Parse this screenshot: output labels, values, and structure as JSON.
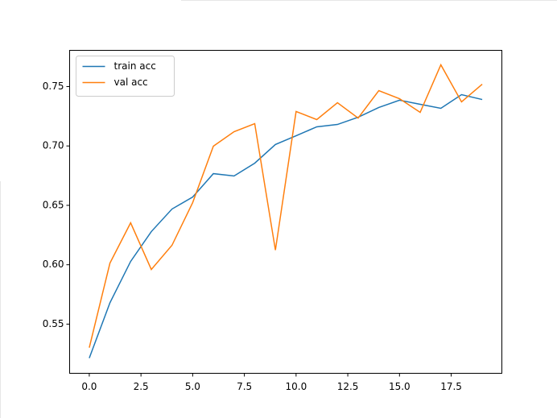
{
  "chart_data": {
    "type": "line",
    "x": [
      0,
      1,
      2,
      3,
      4,
      5,
      6,
      7,
      8,
      9,
      10,
      11,
      12,
      13,
      14,
      15,
      16,
      17,
      18,
      19
    ],
    "series": [
      {
        "name": "train acc",
        "color": "#1f77b4",
        "values": [
          0.5214,
          0.568,
          0.6028,
          0.6279,
          0.6469,
          0.657,
          0.6767,
          0.6747,
          0.6855,
          0.7012,
          0.7086,
          0.7161,
          0.7181,
          0.7242,
          0.7324,
          0.7385,
          0.7351,
          0.7317,
          0.7432,
          0.7391
        ]
      },
      {
        "name": "val acc",
        "color": "#ff7f0e",
        "values": [
          0.5302,
          0.6014,
          0.6353,
          0.596,
          0.6164,
          0.6523,
          0.6998,
          0.712,
          0.7188,
          0.6123,
          0.729,
          0.7222,
          0.7364,
          0.7235,
          0.7466,
          0.7398,
          0.7283,
          0.7683,
          0.7371,
          0.752
        ]
      }
    ],
    "xlim": [
      -0.95,
      19.95
    ],
    "xticks": [
      {
        "value": 0,
        "label": "0.0"
      },
      2.5,
      {
        "value": 5,
        "label": "5.0"
      },
      7.5,
      {
        "value": 10,
        "label": "10.0"
      },
      12.5,
      {
        "value": 15,
        "label": "15.0"
      },
      17.5
    ],
    "ylim": [
      0.5086,
      0.7805
    ],
    "yticks": [
      0.55,
      {
        "value": 0.6,
        "label": "0.60"
      },
      0.65,
      {
        "value": 0.7,
        "label": "0.70"
      },
      0.75
    ],
    "legend": "upper left"
  }
}
